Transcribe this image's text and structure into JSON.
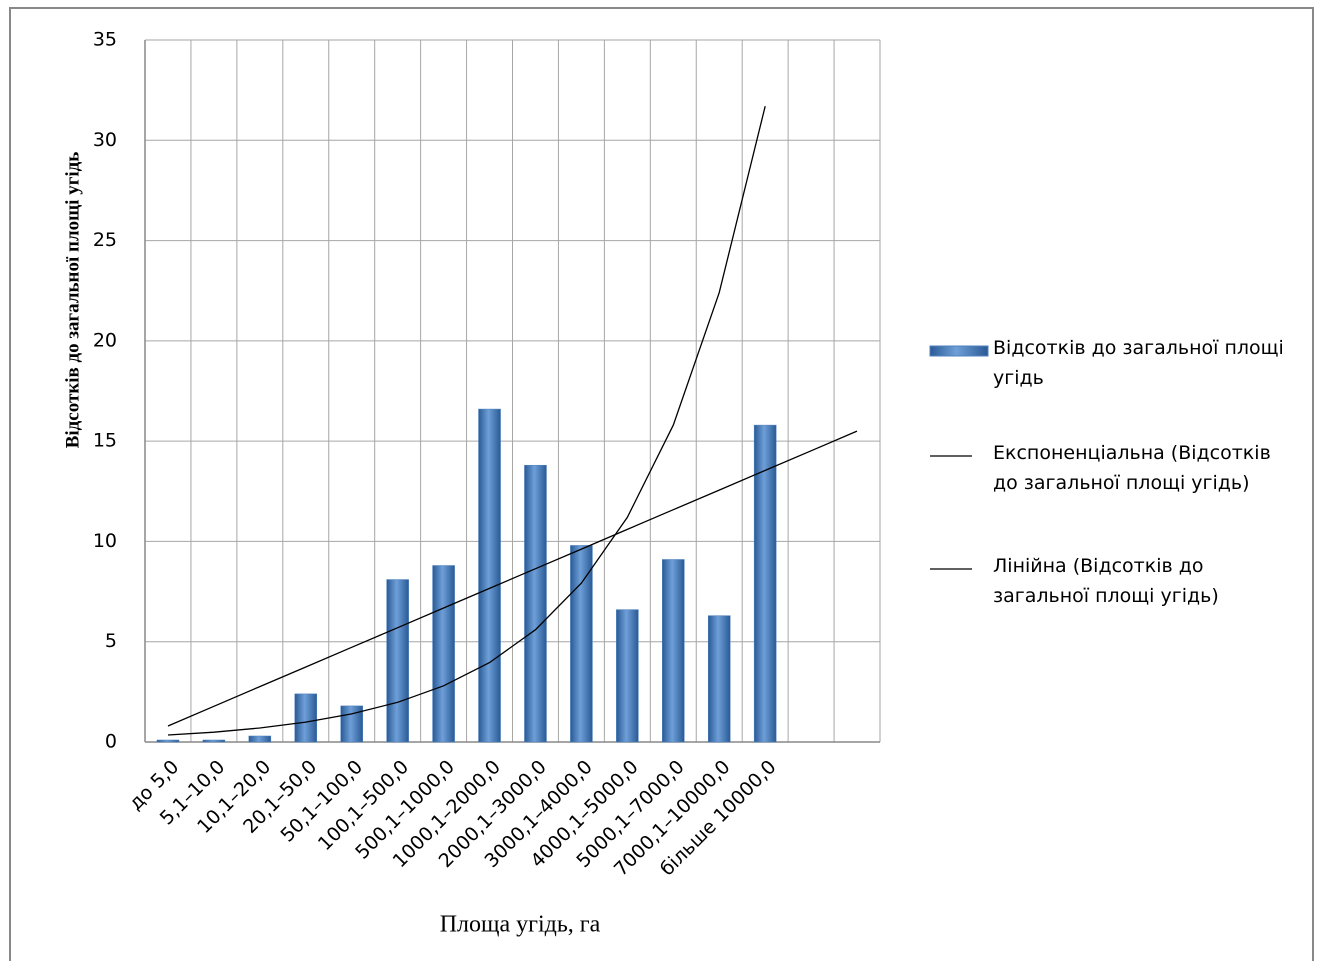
{
  "chart_data": {
    "type": "bar",
    "x_label": "Площа угідь, га",
    "y_label": "Відсотків до загальної площі угідь",
    "categories": [
      "до 5,0",
      "5,1–10,0",
      "10,1–20,0",
      "20,1–50,0",
      "50,1–100,0",
      "100,1–500,0",
      "500,1–1000,0",
      "1000,1–2000,0",
      "2000,1–3000,0",
      "3000,1–4000,0",
      "4000,1–5000,0",
      "5000,1–7000,0",
      "7000,1–10000,0",
      "більше 10000,0",
      null,
      null
    ],
    "series": [
      {
        "name": "Відсотків до загальної площі угідь",
        "type": "bar",
        "color": "#4f81bd",
        "values": [
          0.1,
          0.1,
          0.3,
          2.4,
          1.8,
          8.1,
          8.8,
          16.6,
          13.8,
          9.8,
          6.6,
          9.1,
          6.3,
          15.8,
          null,
          null
        ]
      },
      {
        "name": "Експоненціальна (Відсотків до загальної площі угідь)",
        "type": "line",
        "color": "#000000",
        "values": [
          0.35,
          0.49,
          0.7,
          0.99,
          1.4,
          1.98,
          2.8,
          3.96,
          5.6,
          7.92,
          11.2,
          15.8,
          22.4,
          31.7,
          null,
          null
        ]
      },
      {
        "name": "Лінійна (Відсотків до загальної площі угідь)",
        "type": "line",
        "color": "#000000",
        "values": [
          0.8,
          1.78,
          2.76,
          3.74,
          4.72,
          5.7,
          6.68,
          7.66,
          8.64,
          9.62,
          10.6,
          11.58,
          12.56,
          13.54,
          14.52,
          15.5
        ]
      }
    ],
    "ylim": [
      0,
      35
    ],
    "yticks": [
      0,
      5,
      10,
      15,
      20,
      25,
      30,
      35
    ],
    "grid": true,
    "legend": "right"
  }
}
